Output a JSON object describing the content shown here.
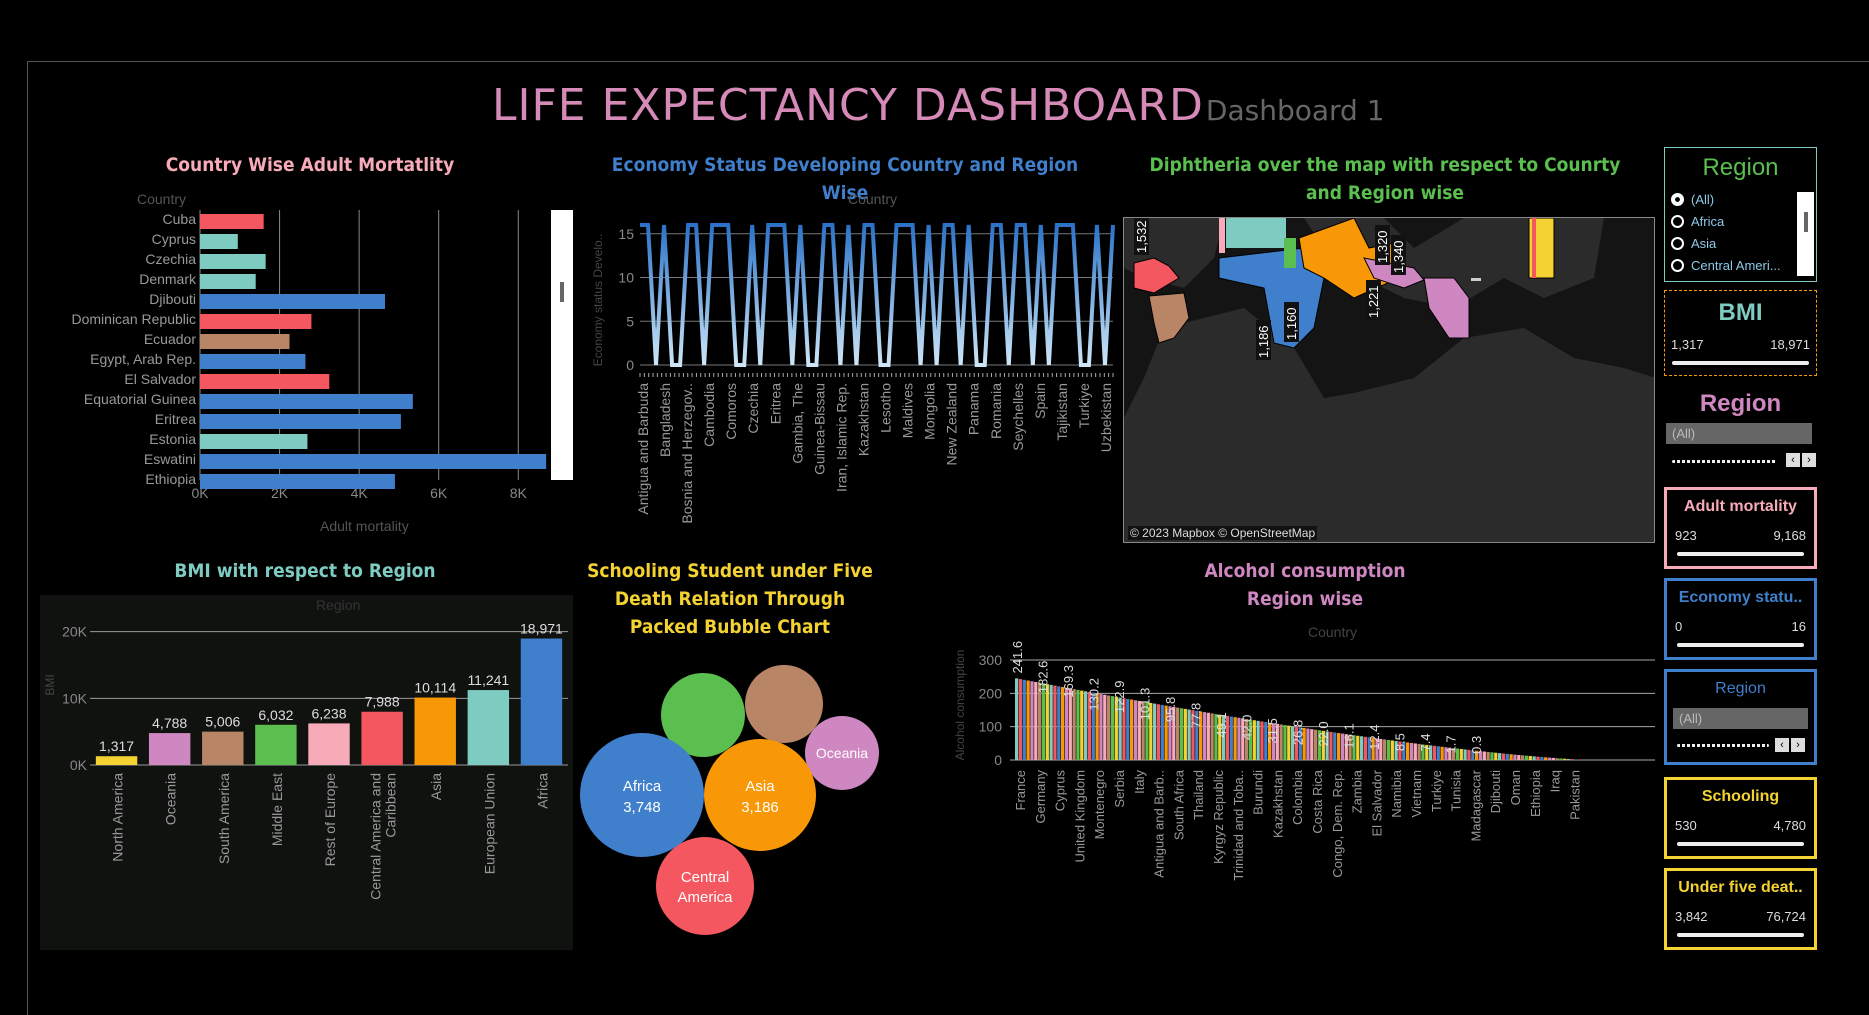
{
  "title": "LIFE EXPECTANCY DASHBOARD",
  "subtitle": "Dashboard 1",
  "colors": {
    "europe_union": "#7ecbc1",
    "caribbean": "#f4575f",
    "south_america": "#b88566",
    "africa": "#3f7fcb",
    "asia": "#f99806",
    "middle_east": "#5bbf4f",
    "oceania": "#cf87c1",
    "rest_europe": "#f7aab8",
    "north_america": "#f4d231"
  },
  "adult_mortality": {
    "title": "Country Wise Adult Mortatlity",
    "header": "Country",
    "xlabel": "Adult mortality",
    "ticks": [
      "0K",
      "2K",
      "4K",
      "6K",
      "8K"
    ]
  },
  "economy": {
    "title": "Economy Status Developing Country and Region Wise",
    "header": "Country",
    "ylabel": "Economy status Develo..",
    "yticks": [
      "15",
      "10",
      "5",
      "0"
    ],
    "countries": [
      "Antigua and Barbuda",
      "Bangladesh",
      "Bosnia and Herzegov..",
      "Cambodia",
      "Comoros",
      "Czechia",
      "Eritrea",
      "Gambia, The",
      "Guinea-Bissau",
      "Iran, Islamic Rep.",
      "Kazakhstan",
      "Lesotho",
      "Maldives",
      "Mongolia",
      "New Zealand",
      "Panama",
      "Romania",
      "Seychelles",
      "Spain",
      "Tajikistan",
      "Turkiye",
      "Uzbekistan"
    ]
  },
  "map": {
    "title": "Diphtheria over the map with respect to Counrty and Region wise",
    "labels": [
      "1,532",
      "1,186",
      "1,160",
      "1,221",
      "1,320",
      "1,340"
    ],
    "attribution": "© 2023 Mapbox © OpenStreetMap"
  },
  "bmi": {
    "title": "BMI with respect to Region",
    "header": "Region",
    "ylabel": "BMI",
    "yticks": [
      "20K",
      "10K",
      "0K"
    ]
  },
  "bubble": {
    "title_lines": [
      "Schooling Student under Five",
      "Death Relation Through",
      "Packed Bubble Chart"
    ],
    "bubbles": [
      {
        "name": "Africa",
        "value": "3,748"
      },
      {
        "name": "Asia",
        "value": "3,186"
      },
      {
        "name": "Oceania",
        "value": ""
      },
      {
        "name": "Central America",
        "value": ""
      },
      {
        "name": "",
        "value": ""
      },
      {
        "name": "",
        "value": ""
      }
    ]
  },
  "alcohol": {
    "title_lines": [
      "Alcohol consumption",
      "Region wise"
    ],
    "header": "Country",
    "ylabel": "Alcohol consumption",
    "yticks": [
      "300",
      "200",
      "100",
      "0"
    ],
    "countries": [
      "France",
      "Germany",
      "Cyprus",
      "United Kingdom",
      "Montenegro",
      "Serbia",
      "Italy",
      "Antigua and Barb..",
      "South Africa",
      "Thailand",
      "Kyrgyz Republic",
      "Trinidad and Toba..",
      "Burundi",
      "Kazakhstan",
      "Colombia",
      "Costa Rica",
      "Congo, Dem. Rep.",
      "Zambia",
      "El Salvador",
      "Namibia",
      "Vietnam",
      "Turkiye",
      "Tunisia",
      "Madagascar",
      "Djibouti",
      "Oman",
      "Ethiopia",
      "Iraq",
      "Pakistan"
    ],
    "value_labels": [
      "241.6",
      "182.6",
      "169.3",
      "130.2",
      "122.9",
      "101.3",
      "95.8",
      "77.8",
      "49.1",
      "42.0",
      "31.5",
      "26.8",
      "22.0",
      "16.1",
      "12.4",
      "8.5",
      "7.4",
      "1.7",
      "0.3"
    ]
  },
  "filters": {
    "region_radio": {
      "title": "Region",
      "options": [
        "(All)",
        "Africa",
        "Asia",
        "Central Ameri..."
      ],
      "selected": "(All)"
    },
    "bmi": {
      "title": "BMI",
      "min": "1,317",
      "max": "18,971"
    },
    "region_dd1": {
      "title": "Region",
      "value": "(All)"
    },
    "adult_mortality": {
      "title": "Adult mortality",
      "min": "923",
      "max": "9,168"
    },
    "economy": {
      "title": "Economy statu..",
      "min": "0",
      "max": "16"
    },
    "region_dd2": {
      "title": "Region",
      "value": "(All)"
    },
    "schooling": {
      "title": "Schooling",
      "min": "530",
      "max": "4,780"
    },
    "under_five": {
      "title": "Under five deat..",
      "min": "3,842",
      "max": "76,724"
    }
  },
  "chart_data": [
    {
      "type": "bar",
      "orientation": "horizontal",
      "title": "Country Wise Adult Mortatlity",
      "xlabel": "Adult mortality",
      "ylabel": "Country",
      "categories": [
        "Cuba",
        "Cyprus",
        "Czechia",
        "Denmark",
        "Djibouti",
        "Dominican Republic",
        "Ecuador",
        "Egypt, Arab Rep.",
        "El Salvador",
        "Equatorial Guinea",
        "Eritrea",
        "Estonia",
        "Eswatini",
        "Ethiopia"
      ],
      "values": [
        1600,
        950,
        1650,
        1400,
        4650,
        2800,
        2250,
        2650,
        3250,
        5350,
        5050,
        2700,
        8700,
        4900
      ],
      "colors": [
        "#f4575f",
        "#7ecbc1",
        "#7ecbc1",
        "#7ecbc1",
        "#3f7fcb",
        "#f4575f",
        "#b88566",
        "#3f7fcb",
        "#f4575f",
        "#3f7fcb",
        "#3f7fcb",
        "#7ecbc1",
        "#3f7fcb",
        "#3f7fcb"
      ],
      "xlim": [
        0,
        9300
      ]
    },
    {
      "type": "bar",
      "title": "BMI with respect to Region",
      "xlabel": "",
      "ylabel": "BMI",
      "categories": [
        "North America",
        "Oceania",
        "South America",
        "Middle East",
        "Rest of Europe",
        "Central America and Caribbean",
        "Asia",
        "European Union",
        "Africa"
      ],
      "values": [
        1317,
        4788,
        5006,
        6032,
        6238,
        7988,
        10114,
        11241,
        18971
      ],
      "labels": [
        "1,317",
        "4,788",
        "5,006",
        "6,032",
        "6,238",
        "7,988",
        "10,114",
        "11,241",
        "18,971"
      ],
      "colors": [
        "#f4d231",
        "#cf87c1",
        "#b88566",
        "#5bbf4f",
        "#f7aab8",
        "#f4575f",
        "#f99806",
        "#7ecbc1",
        "#3f7fcb"
      ],
      "ylim": [
        0,
        21000
      ]
    }
  ]
}
